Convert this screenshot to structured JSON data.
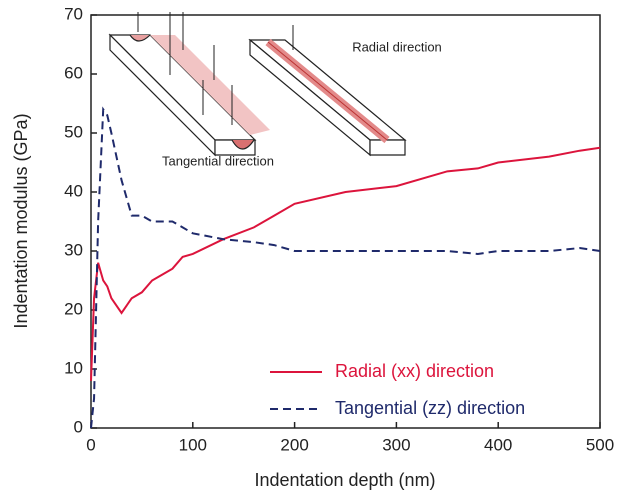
{
  "chart_data": {
    "type": "line",
    "x_label": "Indentation depth (nm)",
    "y_label": "Indentation modulus (GPa)",
    "annotations": [
      "Radial direction",
      "Tangential direction"
    ],
    "x": [
      0,
      3,
      7,
      12,
      16,
      20,
      30,
      40,
      50,
      60,
      70,
      80,
      90,
      100,
      130,
      160,
      180,
      200,
      250,
      300,
      350,
      380,
      400,
      450,
      480,
      500
    ],
    "series": [
      {
        "name": "Radial (xx) direction",
        "color": "#dc143c",
        "style": "solid",
        "values": [
          8,
          22,
          28,
          25,
          24,
          22,
          19.5,
          22,
          23,
          25,
          26,
          27,
          29,
          29.5,
          32,
          34,
          36,
          38,
          40,
          41,
          43.5,
          44,
          45,
          46,
          47,
          47.5
        ]
      },
      {
        "name": "Tangential (zz) direction",
        "color": "#1f2a6b",
        "style": "dashed",
        "values": [
          0,
          5,
          35,
          54,
          53,
          50,
          42,
          36,
          36,
          35,
          35,
          35,
          34,
          33,
          32,
          31.5,
          31,
          30,
          30,
          30,
          30,
          29.5,
          30,
          30,
          30.5,
          30
        ]
      }
    ],
    "xlim": [
      0,
      500
    ],
    "xticks": [
      0,
      100,
      200,
      300,
      400,
      500
    ],
    "ylim": [
      0,
      70
    ],
    "yticks": [
      0,
      10,
      20,
      30,
      40,
      50,
      60,
      70
    ],
    "legend": "lower right"
  }
}
